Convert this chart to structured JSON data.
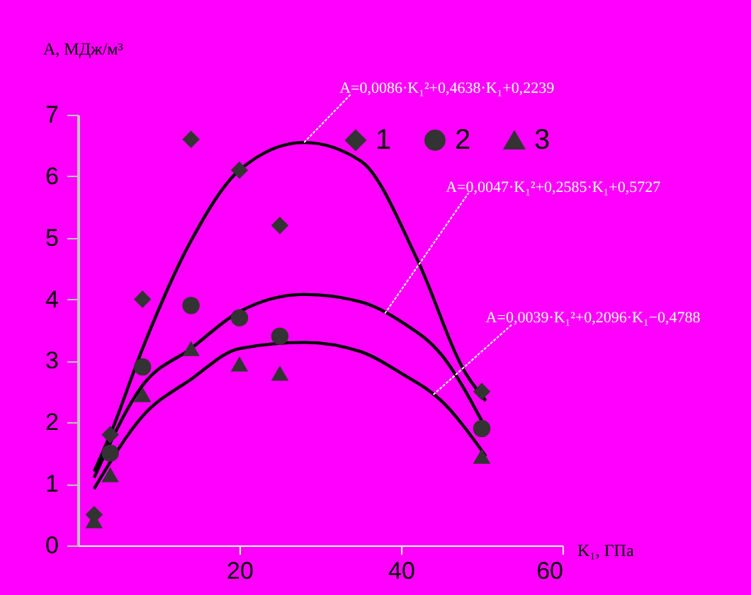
{
  "chart_data": {
    "type": "scatter",
    "xlabel": "K₁, ГПа",
    "ylabel": "A, МДж/м³",
    "x": [
      2,
      4,
      8,
      14,
      20,
      25,
      50
    ],
    "series": [
      {
        "name": "1",
        "color": "#333333",
        "marker": "diamond",
        "values": [
          0.5,
          1.8,
          4.0,
          6.6,
          6.1,
          5.2,
          2.5
        ]
      },
      {
        "name": "2",
        "color": "#333333",
        "marker": "circle",
        "values": [
          null,
          1.5,
          2.9,
          3.9,
          3.7,
          3.4,
          1.9
        ]
      },
      {
        "name": "3",
        "color": "#333333",
        "marker": "triangle",
        "values": [
          0.4,
          1.15,
          2.45,
          3.2,
          2.95,
          2.8,
          1.45
        ]
      },
      {
        "type": "line",
        "color": "#000000",
        "x": [
          2,
          4,
          8,
          14,
          20,
          28,
          35,
          42,
          48,
          50.5
        ],
        "values": [
          1.2,
          1.8,
          3.2,
          4.95,
          6.1,
          6.55,
          6.25,
          4.65,
          2.8,
          2.35
        ]
      },
      {
        "type": "line",
        "color": "#000000",
        "x": [
          2,
          8,
          14,
          20,
          28,
          35,
          40,
          45,
          50.5
        ],
        "values": [
          1.1,
          2.6,
          3.2,
          3.8,
          4.08,
          3.96,
          3.64,
          3.1,
          1.9
        ]
      },
      {
        "type": "line",
        "color": "#000000",
        "x": [
          2,
          8,
          14,
          20,
          28,
          35,
          40,
          45,
          50.5
        ],
        "values": [
          0.92,
          2.1,
          2.7,
          3.2,
          3.3,
          3.15,
          2.8,
          2.35,
          1.45
        ]
      }
    ],
    "annotations": [
      {
        "text": "A=0,0086·K₁²+0,4638·K₁+0,2239",
        "x": 28,
        "y": 6.55
      },
      {
        "text": "A=0,0047·K₁²+0,2585·K₁+0,5727",
        "x": 38,
        "y": 3.77
      },
      {
        "text": "A=0,0039·K₁²+0,2096·K₁−0,4788",
        "x": 44,
        "y": 2.45
      }
    ],
    "xlim": [
      0,
      60
    ],
    "xticks": [
      20,
      40,
      60
    ],
    "ylim": [
      0,
      7
    ],
    "yticks": [
      0,
      1,
      2,
      3,
      4,
      5,
      6,
      7
    ],
    "grid": false,
    "legend": "top right"
  }
}
